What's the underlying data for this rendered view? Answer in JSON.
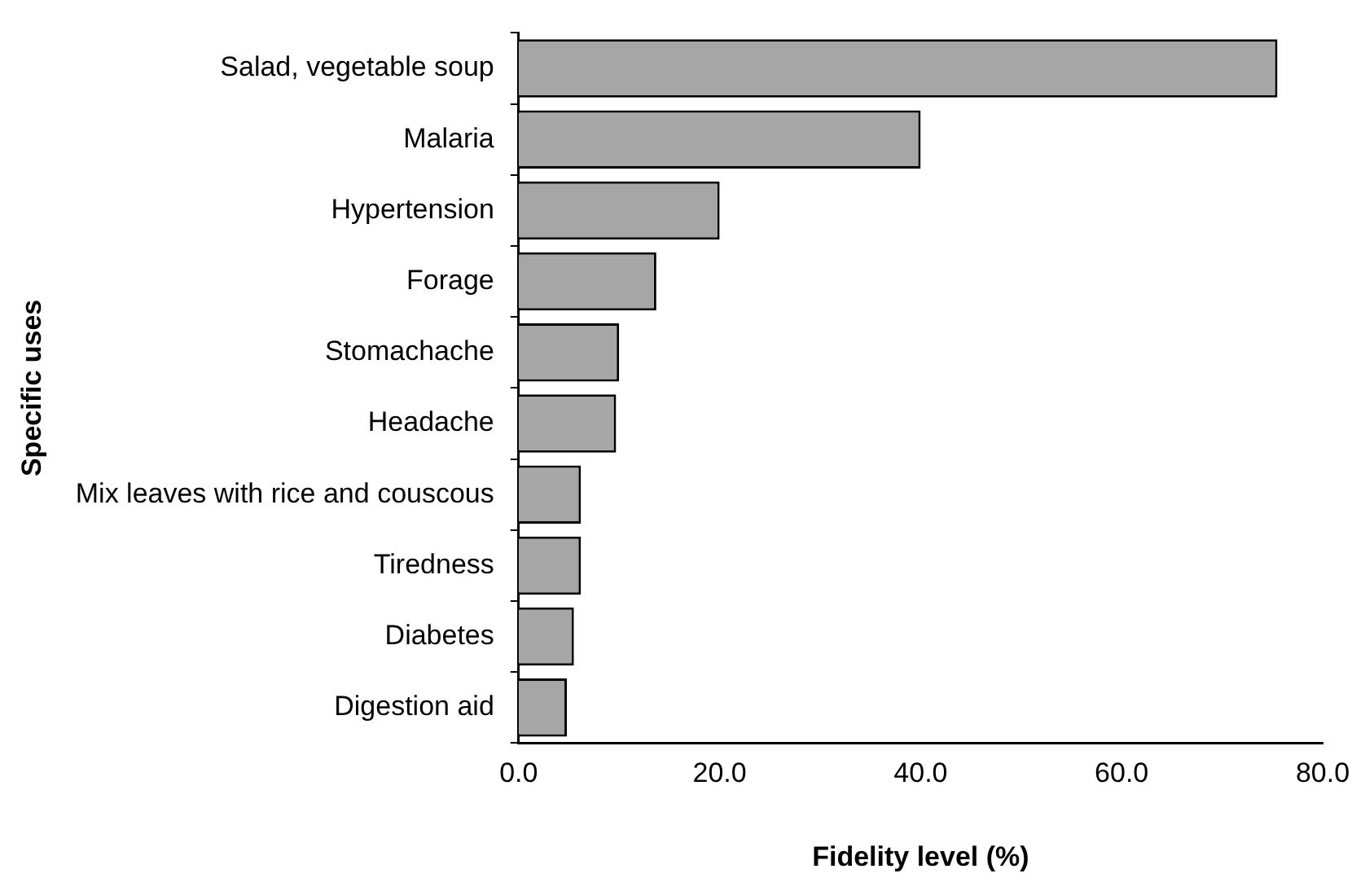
{
  "chart_data": {
    "type": "bar",
    "orientation": "horizontal",
    "xlabel": "Fidelity level (%)",
    "ylabel": "Specific uses",
    "categories": [
      "Salad, vegetable soup",
      "Malaria",
      "Hypertension",
      "Forage",
      "Stomachache",
      "Headache",
      "Mix leaves with rice and couscous",
      "Tiredness",
      "Diabetes",
      "Digestion aid"
    ],
    "values": [
      75.5,
      40,
      20,
      13.7,
      10,
      9.7,
      6.2,
      6.2,
      5.5,
      4.8
    ],
    "color": "#a6a6a6",
    "xlim": [
      0,
      80
    ],
    "xticks": [
      {
        "value": 0,
        "label": "0.0"
      },
      {
        "value": 20,
        "label": "20.0"
      },
      {
        "value": 40,
        "label": "40.0"
      },
      {
        "value": 60,
        "label": "60.0"
      },
      {
        "value": 80,
        "label": "80.0"
      }
    ],
    "grid": false,
    "legend": false
  }
}
